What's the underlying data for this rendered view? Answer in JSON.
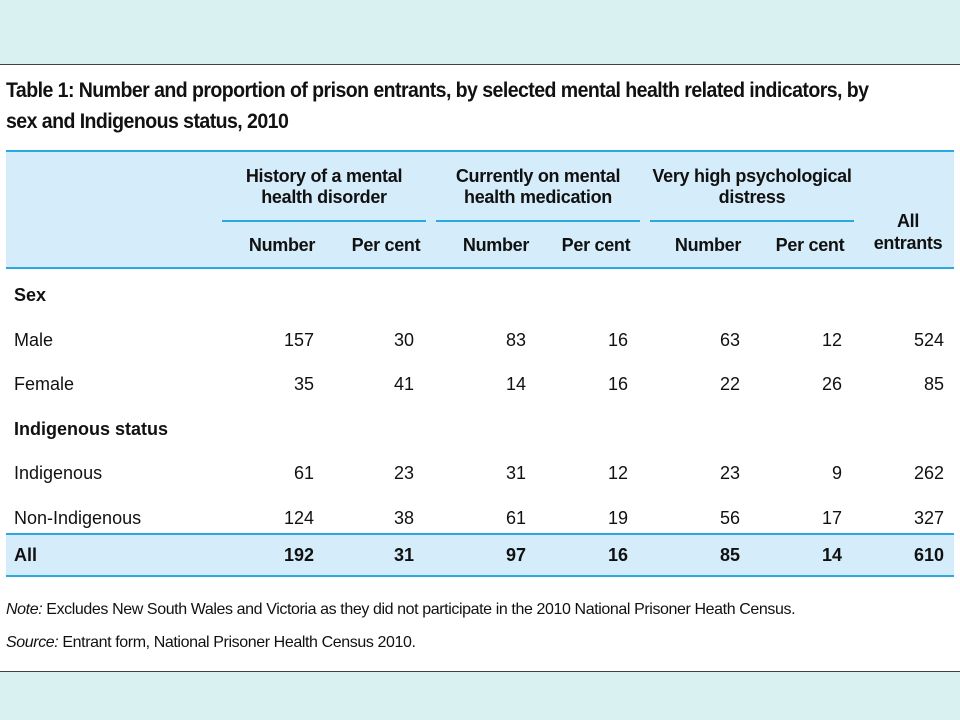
{
  "title": "Table 1: Number and proportion of prison entrants, by selected mental health related indicators, by sex and Indigenous status, 2010",
  "table": {
    "groups": [
      "History of a mental health disorder",
      "Currently on mental health medication",
      "Very high psychological distress"
    ],
    "subheaders": [
      "Number",
      "Per cent",
      "Number",
      "Per cent",
      "Number",
      "Per cent"
    ],
    "all_entrants_header": "All entrants",
    "sections": [
      {
        "title": "Sex",
        "rows": [
          {
            "label": "Male",
            "values": [
              "157",
              "30",
              "83",
              "16",
              "63",
              "12",
              "524"
            ]
          },
          {
            "label": "Female",
            "values": [
              "35",
              "41",
              "14",
              "16",
              "22",
              "26",
              "85"
            ]
          }
        ]
      },
      {
        "title": "Indigenous status",
        "rows": [
          {
            "label": "Indigenous",
            "values": [
              "61",
              "23",
              "31",
              "12",
              "23",
              "9",
              "262"
            ]
          },
          {
            "label": "Non-Indigenous",
            "values": [
              "124",
              "38",
              "61",
              "19",
              "56",
              "17",
              "327"
            ]
          }
        ]
      }
    ],
    "total": {
      "label": "All",
      "values": [
        "192",
        "31",
        "97",
        "16",
        "85",
        "14",
        "610"
      ]
    }
  },
  "note": {
    "prefix": "Note:",
    "text": "Excludes New South Wales and Victoria as they did not participate in the 2010 National Prisoner Heath Census."
  },
  "source": {
    "prefix": "Source:",
    "text": "Entrant form, National Prisoner Health Census 2010."
  }
}
